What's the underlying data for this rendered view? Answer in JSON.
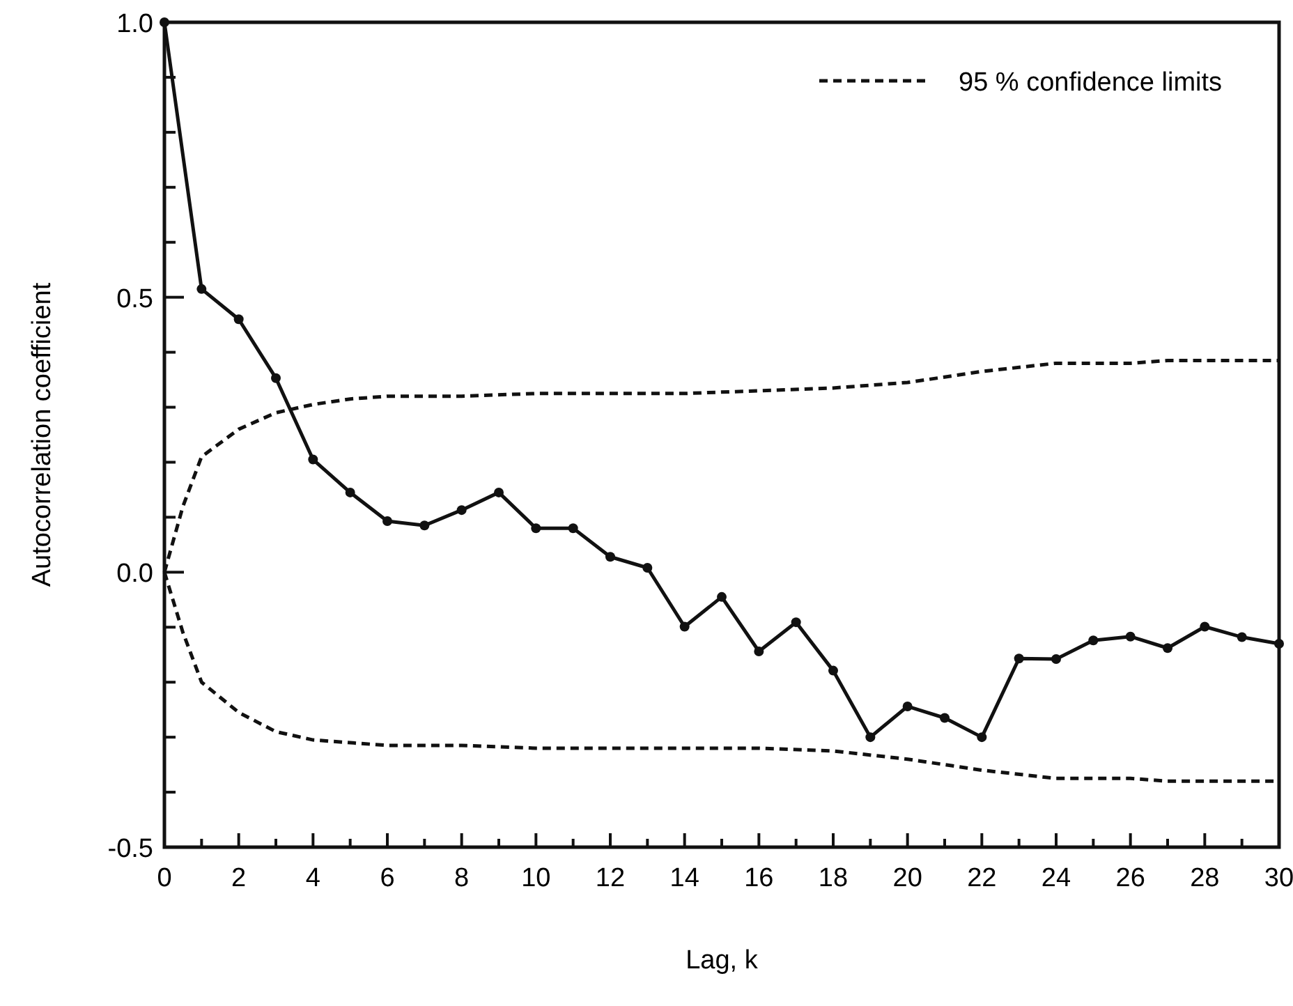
{
  "chart_data": {
    "type": "line",
    "xlabel": "Lag, k",
    "ylabel": "Autocorrelation coefficient",
    "xlim": [
      0,
      30
    ],
    "ylim": [
      -0.5,
      1.0
    ],
    "xticks": [
      0,
      {
        "value": 1,
        "label": null
      },
      2,
      {
        "value": 3,
        "label": null
      },
      4,
      {
        "value": 5,
        "label": null
      },
      6,
      {
        "value": 7,
        "label": null
      },
      8,
      {
        "value": 9,
        "label": null
      },
      10,
      {
        "value": 11,
        "label": null
      },
      12,
      {
        "value": 13,
        "label": null
      },
      14,
      {
        "value": 15,
        "label": null
      },
      16,
      {
        "value": 17,
        "label": null
      },
      18,
      {
        "value": 19,
        "label": null
      },
      20,
      {
        "value": 21,
        "label": null
      },
      22,
      {
        "value": 23,
        "label": null
      },
      24,
      {
        "value": 25,
        "label": null
      },
      26,
      {
        "value": 27,
        "label": null
      },
      28,
      {
        "value": 29,
        "label": null
      },
      30
    ],
    "yticks": [
      -0.5,
      {
        "value": -0.4,
        "label": null
      },
      {
        "value": -0.3,
        "label": null
      },
      {
        "value": -0.2,
        "label": null
      },
      {
        "value": -0.1,
        "label": null
      },
      {
        "value": 0,
        "label": "0.0"
      },
      {
        "value": 0.1,
        "label": null
      },
      {
        "value": 0.2,
        "label": null
      },
      {
        "value": 0.3,
        "label": null
      },
      {
        "value": 0.4,
        "label": null
      },
      0.5,
      {
        "value": 0.6,
        "label": null
      },
      {
        "value": 0.7,
        "label": null
      },
      {
        "value": 0.8,
        "label": null
      },
      {
        "value": 0.9,
        "label": null
      },
      {
        "value": 1,
        "label": "1.0"
      }
    ],
    "legend": "top right",
    "grid": false,
    "series": [
      {
        "color": "#111111",
        "marker": "circle",
        "line_style": "solid",
        "x": [
          0,
          1,
          2,
          3,
          4,
          5,
          6,
          7,
          8,
          9,
          10,
          11,
          12,
          13,
          14,
          15,
          16,
          17,
          18,
          19,
          20,
          21,
          22,
          23,
          24,
          25,
          26,
          27,
          28,
          29,
          30
        ],
        "values": [
          1.0,
          0.515,
          0.46,
          0.353,
          0.205,
          0.145,
          0.093,
          0.085,
          0.113,
          0.145,
          0.08,
          0.08,
          0.028,
          0.008,
          -0.099,
          -0.045,
          -0.144,
          -0.091,
          -0.179,
          -0.3,
          -0.244,
          -0.265,
          -0.3,
          -0.157,
          -0.158,
          -0.124,
          -0.117,
          -0.138,
          -0.099,
          -0.118,
          -0.13
        ]
      },
      {
        "name": "95 % confidence limits",
        "color": "#111111",
        "marker": "none",
        "line_style": "dashed",
        "x": [
          0,
          0.5,
          1,
          2,
          3,
          4,
          5,
          6,
          8,
          10,
          12,
          14,
          16,
          18,
          20,
          22,
          24,
          26,
          27,
          30
        ],
        "values": [
          0,
          0.12,
          0.21,
          0.26,
          0.29,
          0.305,
          0.315,
          0.32,
          0.32,
          0.325,
          0.325,
          0.325,
          0.33,
          0.335,
          0.345,
          0.365,
          0.38,
          0.38,
          0.385,
          0.385
        ]
      },
      {
        "color": "#111111",
        "marker": "none",
        "line_style": "dashed",
        "x": [
          0,
          0.5,
          1,
          2,
          3,
          4,
          5,
          6,
          8,
          10,
          12,
          14,
          16,
          18,
          20,
          22,
          24,
          26,
          27,
          30
        ],
        "values": [
          0,
          -0.11,
          -0.2,
          -0.255,
          -0.29,
          -0.305,
          -0.31,
          -0.315,
          -0.315,
          -0.32,
          -0.32,
          -0.32,
          -0.32,
          -0.325,
          -0.34,
          -0.36,
          -0.375,
          -0.375,
          -0.38,
          -0.38
        ]
      }
    ]
  }
}
